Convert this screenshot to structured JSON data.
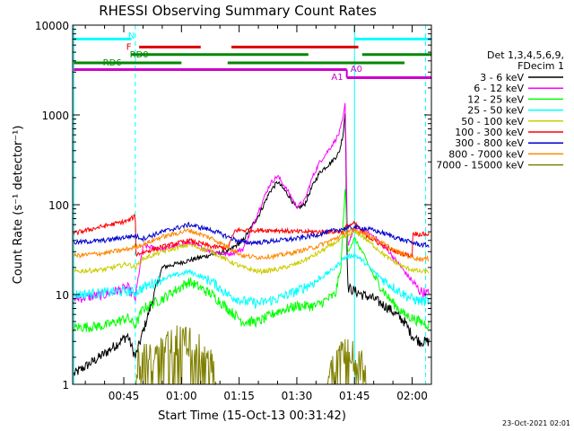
{
  "chart_data": {
    "type": "line",
    "title": "RHESSI Observing Summary Count Rates",
    "xlabel": "Start Time (15-Oct-13 00:31:42)",
    "ylabel": "Count Rate (s⁻¹ detector⁻¹)",
    "yscale": "log",
    "ylim": [
      1,
      10000
    ],
    "xlim_minutes": [
      31.7,
      125.0
    ],
    "y_ticks": [
      "1",
      "10",
      "100",
      "1000",
      "10000"
    ],
    "x_ticks": [
      {
        "label": "00:45",
        "minute": 45
      },
      {
        "label": "01:00",
        "minute": 60
      },
      {
        "label": "01:15",
        "minute": 75
      },
      {
        "label": "01:30",
        "minute": 90
      },
      {
        "label": "01:45",
        "minute": 105
      },
      {
        "label": "02:00",
        "minute": 120
      }
    ],
    "legend_header": [
      "Det 1,3,4,5,6,9,",
      "FDecim 1"
    ],
    "legend_placement": "right",
    "series": [
      {
        "name": "3 - 6 keV",
        "color": "#000000",
        "points": [
          [
            32,
            1.3
          ],
          [
            40,
            2.2
          ],
          [
            46,
            3.5
          ],
          [
            48,
            2
          ],
          [
            55,
            20
          ],
          [
            62,
            24
          ],
          [
            68,
            28
          ],
          [
            72,
            30
          ],
          [
            76,
            40
          ],
          [
            78,
            55
          ],
          [
            80,
            75
          ],
          [
            83,
            140
          ],
          [
            85,
            180
          ],
          [
            88,
            125
          ],
          [
            90,
            90
          ],
          [
            92,
            100
          ],
          [
            94,
            160
          ],
          [
            96,
            230
          ],
          [
            99,
            300
          ],
          [
            101,
            380
          ],
          [
            102,
            600
          ],
          [
            102.6,
            1100
          ],
          [
            103.2,
            12
          ],
          [
            105,
            11
          ],
          [
            107,
            10
          ],
          [
            110,
            9
          ],
          [
            114,
            7
          ],
          [
            118,
            5
          ],
          [
            120,
            3.5
          ],
          [
            122,
            3
          ],
          [
            125,
            3
          ]
        ]
      },
      {
        "name": "6 - 12 keV",
        "color": "#ff00ff",
        "points": [
          [
            32,
            9
          ],
          [
            40,
            10
          ],
          [
            46,
            12
          ],
          [
            48,
            9
          ],
          [
            50,
            35
          ],
          [
            55,
            32
          ],
          [
            62,
            38
          ],
          [
            68,
            30
          ],
          [
            72,
            28
          ],
          [
            76,
            32
          ],
          [
            78,
            50
          ],
          [
            80,
            85
          ],
          [
            83,
            170
          ],
          [
            85,
            210
          ],
          [
            88,
            135
          ],
          [
            90,
            95
          ],
          [
            92,
            110
          ],
          [
            94,
            200
          ],
          [
            96,
            300
          ],
          [
            99,
            450
          ],
          [
            101,
            620
          ],
          [
            102,
            900
          ],
          [
            102.6,
            1350
          ],
          [
            103.2,
            35
          ],
          [
            105,
            55
          ],
          [
            107,
            52
          ],
          [
            110,
            45
          ],
          [
            114,
            30
          ],
          [
            118,
            18
          ],
          [
            120,
            14
          ],
          [
            122,
            11
          ],
          [
            125,
            10
          ]
        ]
      },
      {
        "name": "12 - 25 keV",
        "color": "#00ff00",
        "points": [
          [
            32,
            4.3
          ],
          [
            40,
            4.5
          ],
          [
            46,
            5.5
          ],
          [
            48,
            4.5
          ],
          [
            50,
            7
          ],
          [
            55,
            9
          ],
          [
            62,
            14
          ],
          [
            68,
            10
          ],
          [
            72,
            7
          ],
          [
            76,
            5
          ],
          [
            80,
            5
          ],
          [
            85,
            6.5
          ],
          [
            90,
            7.5
          ],
          [
            95,
            7.5
          ],
          [
            100,
            10
          ],
          [
            101.5,
            20
          ],
          [
            102,
            60
          ],
          [
            102.6,
            150
          ],
          [
            103.2,
            30
          ],
          [
            104,
            35
          ],
          [
            105,
            42
          ],
          [
            107,
            30
          ],
          [
            110,
            16
          ],
          [
            114,
            9
          ],
          [
            118,
            6
          ],
          [
            120,
            5.5
          ],
          [
            122,
            5
          ],
          [
            125,
            4.5
          ]
        ]
      },
      {
        "name": "25 - 50 keV",
        "color": "#00ffff",
        "points": [
          [
            32,
            10
          ],
          [
            40,
            10.5
          ],
          [
            46,
            11
          ],
          [
            48,
            10.5
          ],
          [
            50,
            12
          ],
          [
            55,
            15
          ],
          [
            62,
            18
          ],
          [
            68,
            14
          ],
          [
            72,
            10
          ],
          [
            76,
            8.5
          ],
          [
            80,
            8
          ],
          [
            85,
            9
          ],
          [
            90,
            11
          ],
          [
            95,
            14
          ],
          [
            100,
            20
          ],
          [
            102,
            25
          ],
          [
            103,
            26
          ],
          [
            105,
            28
          ],
          [
            107,
            24
          ],
          [
            110,
            18
          ],
          [
            114,
            13
          ],
          [
            118,
            10
          ],
          [
            120,
            9
          ],
          [
            122,
            8.5
          ],
          [
            125,
            8.5
          ]
        ]
      },
      {
        "name": "50 - 100 keV",
        "color": "#cccc00",
        "points": [
          [
            32,
            18
          ],
          [
            40,
            19
          ],
          [
            46,
            22
          ],
          [
            48,
            20
          ],
          [
            50,
            25
          ],
          [
            55,
            30
          ],
          [
            62,
            36
          ],
          [
            68,
            30
          ],
          [
            72,
            24
          ],
          [
            76,
            20
          ],
          [
            80,
            18
          ],
          [
            85,
            19
          ],
          [
            90,
            22
          ],
          [
            95,
            28
          ],
          [
            100,
            38
          ],
          [
            102,
            42
          ],
          [
            103,
            45
          ],
          [
            105,
            50
          ],
          [
            107,
            45
          ],
          [
            110,
            35
          ],
          [
            114,
            25
          ],
          [
            118,
            20
          ],
          [
            120,
            19
          ],
          [
            122,
            18
          ],
          [
            125,
            18
          ]
        ]
      },
      {
        "name": "100 - 300 keV",
        "color": "#ff0000",
        "points": [
          [
            32,
            48
          ],
          [
            40,
            58
          ],
          [
            46,
            66
          ],
          [
            48,
            75
          ],
          [
            48.2,
            28
          ],
          [
            55,
            34
          ],
          [
            62,
            40
          ],
          [
            68,
            34
          ],
          [
            72,
            33
          ],
          [
            74,
            52
          ],
          [
            80,
            52
          ],
          [
            85,
            52
          ],
          [
            90,
            50
          ],
          [
            95,
            50
          ],
          [
            100,
            50
          ],
          [
            102,
            50
          ],
          [
            103,
            58
          ],
          [
            105,
            62
          ],
          [
            107,
            50
          ],
          [
            110,
            40
          ],
          [
            114,
            32
          ],
          [
            118,
            28
          ],
          [
            120,
            27
          ],
          [
            120.2,
            48
          ],
          [
            122,
            47
          ],
          [
            125,
            47
          ]
        ]
      },
      {
        "name": "300 - 800 keV",
        "color": "#0000cc",
        "points": [
          [
            32,
            38
          ],
          [
            40,
            40
          ],
          [
            46,
            44
          ],
          [
            48,
            45
          ],
          [
            50,
            42
          ],
          [
            55,
            50
          ],
          [
            62,
            60
          ],
          [
            68,
            52
          ],
          [
            72,
            44
          ],
          [
            76,
            38
          ],
          [
            80,
            38
          ],
          [
            85,
            40
          ],
          [
            90,
            42
          ],
          [
            95,
            46
          ],
          [
            100,
            52
          ],
          [
            103,
            55
          ],
          [
            106,
            56
          ],
          [
            110,
            52
          ],
          [
            114,
            46
          ],
          [
            118,
            40
          ],
          [
            120,
            38
          ],
          [
            122,
            36
          ],
          [
            125,
            35
          ]
        ]
      },
      {
        "name": "800 - 7000 keV",
        "color": "#ff8800",
        "points": [
          [
            32,
            27
          ],
          [
            40,
            29
          ],
          [
            46,
            32
          ],
          [
            48,
            34
          ],
          [
            50,
            36
          ],
          [
            55,
            44
          ],
          [
            62,
            52
          ],
          [
            68,
            42
          ],
          [
            72,
            34
          ],
          [
            76,
            27
          ],
          [
            80,
            26
          ],
          [
            85,
            27
          ],
          [
            90,
            30
          ],
          [
            95,
            34
          ],
          [
            100,
            42
          ],
          [
            103,
            50
          ],
          [
            105,
            52
          ],
          [
            108,
            48
          ],
          [
            112,
            38
          ],
          [
            116,
            30
          ],
          [
            120,
            26
          ],
          [
            122,
            25
          ],
          [
            125,
            25
          ]
        ]
      },
      {
        "name": "7000 - 15000 keV",
        "color": "#808000",
        "points": [
          [
            32,
            1
          ],
          [
            48,
            1
          ],
          [
            48.5,
            1.8
          ],
          [
            52,
            2
          ],
          [
            56,
            2.8
          ],
          [
            60,
            3.2
          ],
          [
            62,
            3
          ],
          [
            64,
            2.6
          ],
          [
            66,
            2.2
          ],
          [
            68,
            1.6
          ],
          [
            69,
            1
          ],
          [
            98,
            1
          ],
          [
            99,
            1.5
          ],
          [
            101,
            2
          ],
          [
            103,
            2.2
          ],
          [
            105,
            2
          ],
          [
            107,
            1.6
          ],
          [
            108,
            1
          ],
          [
            125,
            1
          ]
        ]
      }
    ],
    "status_bars": [
      {
        "label": "N",
        "color": "#00ffff",
        "label_minute": 47,
        "label_value": 7800,
        "value": 7000,
        "segments": [
          [
            32,
            47
          ],
          [
            105,
            125
          ]
        ]
      },
      {
        "label": "F",
        "color": "#dd0000",
        "label_minute": 46.3,
        "label_value": 5800,
        "value": 5700,
        "segments": [
          [
            49,
            65
          ],
          [
            73,
            106
          ]
        ]
      },
      {
        "label": "RD0",
        "color": "#008800",
        "label_minute": 49,
        "label_value": 4800,
        "value": 4700,
        "segments": [
          [
            47,
            93
          ],
          [
            107,
            125
          ]
        ]
      },
      {
        "label": "RD6",
        "color": "#008800",
        "label_minute": 42,
        "label_value": 3900,
        "value": 3800,
        "segments": [
          [
            32,
            60
          ],
          [
            72,
            118
          ]
        ]
      },
      {
        "label": "A0",
        "color": "#cc00cc",
        "label_minute": 105.5,
        "label_value": 3300,
        "value": 3200,
        "segments": [
          [
            32,
            103
          ]
        ]
      },
      {
        "label": "A1",
        "color": "#cc00cc",
        "label_minute": 100.5,
        "label_value": 2700,
        "value": 2600,
        "segments": [
          [
            103,
            125
          ]
        ]
      }
    ],
    "markers": [
      {
        "minute": 32.0,
        "color": "#00ffff",
        "style": "solid"
      },
      {
        "minute": 48.0,
        "color": "#00ffff",
        "style": "dashed"
      },
      {
        "minute": 105.0,
        "color": "#00ffff",
        "style": "solid"
      },
      {
        "minute": 123.5,
        "color": "#00ffff",
        "style": "dashed"
      }
    ]
  },
  "footer": {
    "timestamp": "23-Oct-2021 02:01"
  }
}
